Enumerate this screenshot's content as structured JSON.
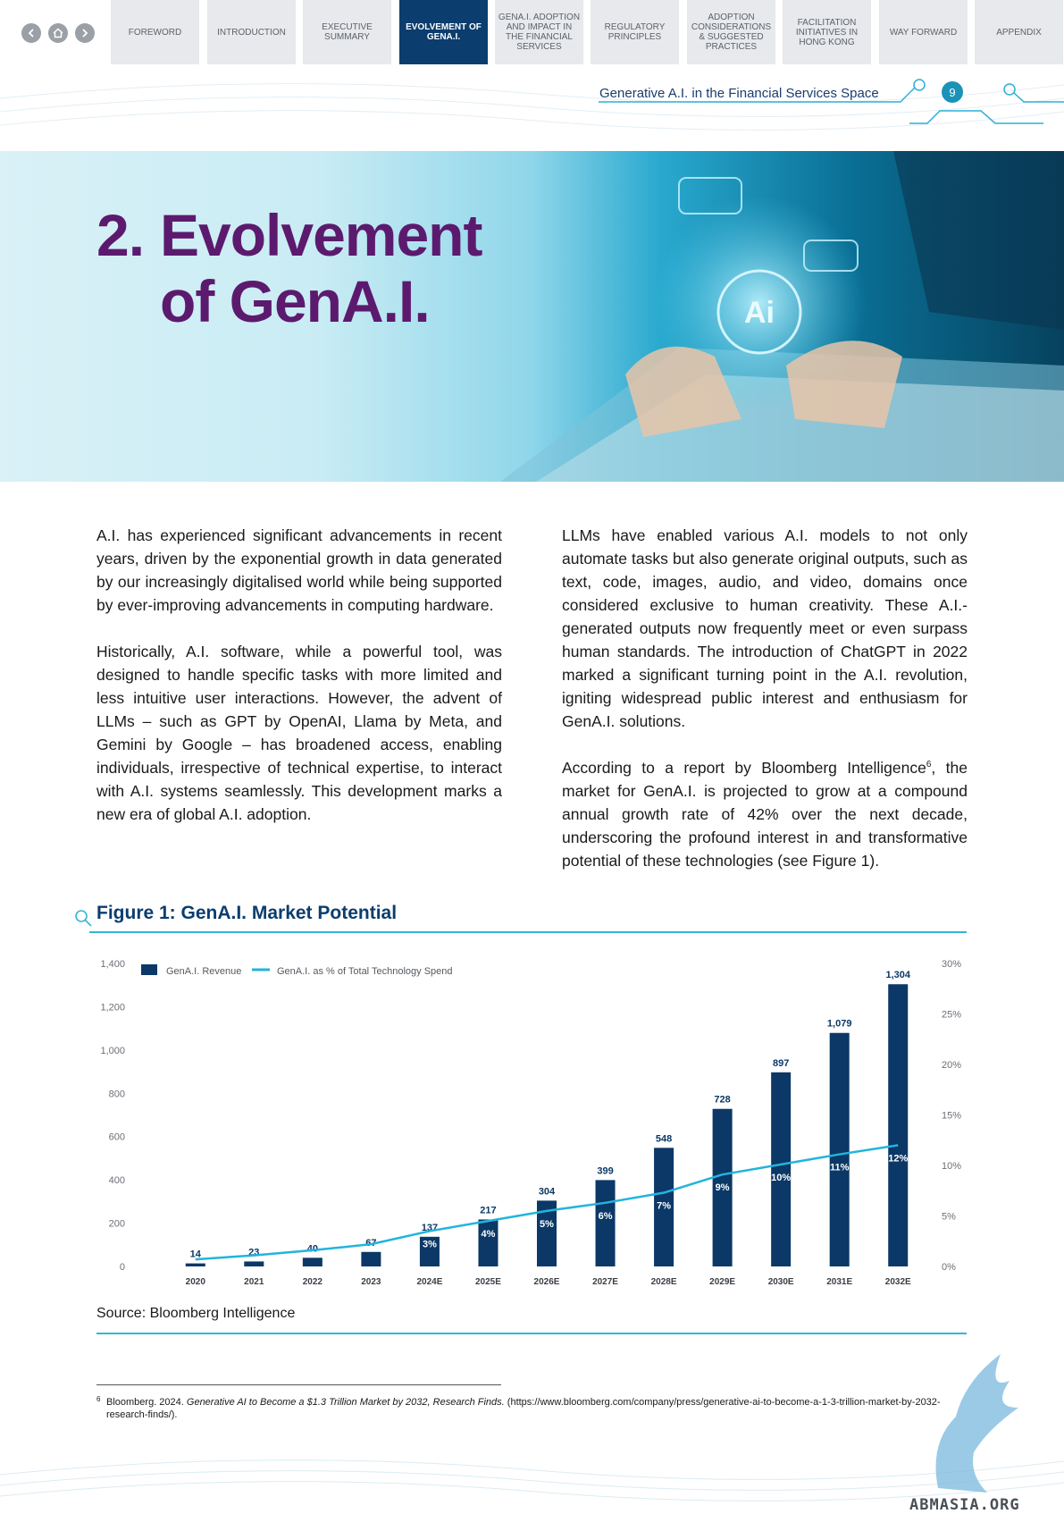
{
  "nav": {
    "tabs": [
      {
        "label": "FOREWORD",
        "active": false
      },
      {
        "label": "INTRODUCTION",
        "active": false
      },
      {
        "label": "EXECUTIVE SUMMARY",
        "active": false
      },
      {
        "label": "EVOLVEMENT OF GenA.I.",
        "active": true
      },
      {
        "label": "GenA.I. ADOPTION AND IMPACT IN THE FINANCIAL SERVICES",
        "active": false
      },
      {
        "label": "REGULATORY PRINCIPLES",
        "active": false
      },
      {
        "label": "ADOPTION CONSIDERATIONS & SUGGESTED PRACTICES",
        "active": false
      },
      {
        "label": "FACILITATION INITIATIVES IN HONG KONG",
        "active": false
      },
      {
        "label": "WAY FORWARD",
        "active": false
      },
      {
        "label": "APPENDIX",
        "active": false
      }
    ]
  },
  "header": {
    "section_title": "Generative A.I. in the Financial Services Space",
    "page_number": "9"
  },
  "hero": {
    "number": "2.",
    "title_line1": "Evolvement",
    "title_line2": "of GenA.I."
  },
  "body": {
    "left": [
      "A.I. has experienced significant advancements in recent years, driven by the exponential growth in data generated by our increasingly digitalised world while being supported by ever-improving advancements in computing hardware.",
      "Historically, A.I. software, while a powerful tool, was designed to handle specific tasks with more limited and less intuitive user interactions.  However, the advent of LLMs – such as GPT by OpenAI, Llama by Meta, and Gemini by Google – has broadened access, enabling individuals, irrespective of technical expertise, to interact with A.I. systems seamlessly. This development marks a new era of global A.I. adoption."
    ],
    "right_p1": "LLMs have enabled various A.I. models to not only automate tasks but also generate original outputs, such as text, code, images, audio, and video, domains once considered exclusive to human creativity. These A.I.-generated outputs now frequently meet or even surpass human standards.  The introduction of ChatGPT in 2022 marked a significant turning point in the A.I. revolution, igniting widespread public interest and enthusiasm for GenA.I. solutions.",
    "right_p2_a": "According to a report by Bloomberg Intelligence",
    "right_p2_sup": "6",
    "right_p2_b": ", the market for GenA.I. is projected to grow at a compound annual growth rate of 42% over the next decade, underscoring the profound interest in and transformative potential of these technologies (see Figure 1)."
  },
  "figure": {
    "title": "Figure 1: GenA.I. Market Potential",
    "source": "Source: Bloomberg Intelligence"
  },
  "chart_data": {
    "type": "bar",
    "categories": [
      "2020",
      "2021",
      "2022",
      "2023",
      "2024E",
      "2025E",
      "2026E",
      "2027E",
      "2028E",
      "2029E",
      "2030E",
      "2031E",
      "2032E"
    ],
    "series": [
      {
        "name": "GenA.I. Revenue",
        "type": "bar",
        "axis": "left",
        "values": [
          14,
          23,
          40,
          67,
          137,
          217,
          304,
          399,
          548,
          728,
          897,
          1079,
          1304
        ],
        "color": "#0b3866"
      },
      {
        "name": "GenA.I. as  % of Total Technology Spend",
        "type": "line",
        "axis": "right",
        "values": [
          null,
          null,
          null,
          null,
          3,
          4,
          5,
          6,
          7,
          9,
          10,
          11,
          12
        ],
        "color": "#22b4dd"
      }
    ],
    "line_path_values": [
      0.7,
      1.1,
      1.6,
      2.2,
      3.5,
      4.5,
      5.5,
      6.3,
      7.3,
      9.1,
      10.1,
      11.1,
      12.0
    ],
    "left_axis": {
      "ticks": [
        "0",
        "200",
        "400",
        "600",
        "800",
        "1,000",
        "1,200",
        "1,400"
      ],
      "range": [
        0,
        1400
      ]
    },
    "right_axis": {
      "ticks": [
        "0%",
        "5%",
        "10%",
        "15%",
        "20%",
        "25%",
        "30%"
      ],
      "range": [
        0,
        30
      ]
    },
    "bar_labels": [
      "14",
      "23",
      "40",
      "67",
      "137",
      "217",
      "304",
      "399",
      "548",
      "728",
      "897",
      "1,079",
      "1,304"
    ],
    "pct_labels": [
      "",
      "",
      "",
      "",
      "3%",
      "4%",
      "5%",
      "6%",
      "7%",
      "9%",
      "10%",
      "11%",
      "12%"
    ],
    "legend_position": "top-left",
    "grid": false
  },
  "footnote": {
    "number": "6",
    "text_a": "Bloomberg. 2024. ",
    "text_italic": "Generative AI to Become a $1.3 Trillion Market by 2032, Research Finds.",
    "text_b": " (https://www.bloomberg.com/company/press/generative-ai-to-become-a-1-3-trillion-market-by-2032-research-finds/)."
  },
  "watermark": "ABMASIA.ORG",
  "colors": {
    "accent": "#36b5d6",
    "navy": "#0b3d6e",
    "purple": "#5c1a6e"
  }
}
